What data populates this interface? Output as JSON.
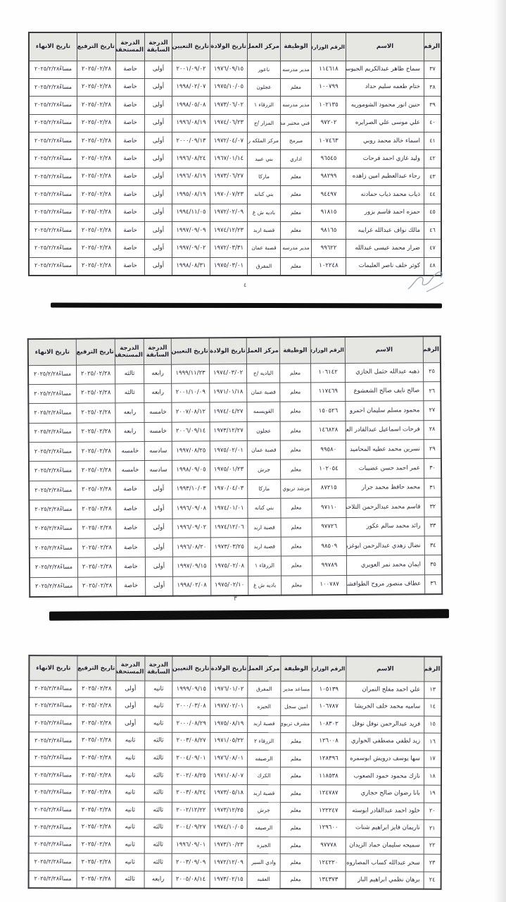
{
  "document": {
    "page_numbers": {
      "first": "٤",
      "second": "٣"
    }
  },
  "columns": [
    {
      "key": "num",
      "label": "الرقم"
    },
    {
      "key": "name",
      "label": "الاسم"
    },
    {
      "key": "ministry_no",
      "label": "الرقم الوزاري"
    },
    {
      "key": "job",
      "label": "الوظيفة"
    },
    {
      "key": "work_center",
      "label": "مركز العمل"
    },
    {
      "key": "birth_date",
      "label": "تاريخ الولادة"
    },
    {
      "key": "appointment_date",
      "label": "تاريخ التعيين"
    },
    {
      "key": "previous_grade",
      "label": "الدرجة السابقة"
    },
    {
      "key": "entitled_grade",
      "label": "الدرجة المستحقة"
    },
    {
      "key": "promotion_date",
      "label": "تاريخ الترفيع"
    },
    {
      "key": "end_date",
      "label": "تاريخ الانهاء"
    }
  ],
  "tables": [
    {
      "rows": [
        [
          "٣٧",
          "سماح ظاهر عبدالكريم الجيوسي",
          "١١٤٦١٨",
          "مدير مدرسه",
          "ناعور",
          "١٩٧٦/٠٩/١٥",
          "٢٠٠١/٠٩/٠٢",
          "أولى",
          "خاصة",
          "٢٠٢٥/٠٢/٢٨",
          "مساءً٢٠٢٥/٢/٢٨"
        ],
        [
          "٣٨",
          "ختام طعمه سليم حداد",
          "١٠٠٧٩٩",
          "معلم",
          "عجلون",
          "١٩٧٥/١٠/٠٥",
          "١٩٩٨/٠٢/٠٧",
          "أولى",
          "خاصة",
          "٢٠٢٥/٠٢/٢٨",
          "مساءً٢٠٢٥/٢/٢٨"
        ],
        [
          "٣٩",
          "حنين انور محمود الشوموريه",
          "١٠٢١٣٥",
          "مدير مدرسه",
          "الزرقاء ١",
          "١٩٧٣/٠٦/٠٢",
          "١٩٩٨/٠٥/٠٨",
          "أولى",
          "خاصة",
          "٢٠٢٥/٠٢/٢٨",
          "مساءً٢٠٢٥/٢/٢٨"
        ],
        [
          "٤٠",
          "علي موسى علي الصرايره",
          "٩٧٢٠٢",
          "فني مختبر مدرسة",
          "المزار /ج",
          "١٩٧٤/٠٦/٢٣",
          "١٩٩٦/٠٨/١٩",
          "أولى",
          "خاصة",
          "٢٠٢٥/٠٢/٢٨",
          "مساءً٢٠٢٥/٢/٢٨"
        ],
        [
          "٤١",
          "اسماء خالد محمد روبي",
          "١٠٧٤٦٣",
          "مبرمج",
          "مركز الملكه رانيا",
          "١٩٧٢/٠٤/٠٧",
          "٢٠٠٠/٠٩/١٣",
          "أولى",
          "خاصة",
          "٢٠٢٥/٠٢/٢٨",
          "مساءً٢٠٢٥/٢/٢٨"
        ],
        [
          "٤٢",
          "وليد غازي احمد فرحات",
          "٩٦٥٤٥",
          "اداري",
          "بني عبيد",
          "١٩٦٧/٠١/١٤",
          "١٩٩٦/٠٨/٢٤",
          "أولى",
          "خاصة",
          "٢٠٢٥/٠٢/٢٨",
          "مساءً٢٠٢٥/٢/٢٨"
        ],
        [
          "٤٣",
          "رجاء عبدالعظيم امين زاهده",
          "٩٨٢٩٩",
          "معلم",
          "ماركا",
          "١٩٧٣/٠٦/٢٧",
          "١٩٩٦/٠٨/١٩",
          "أولى",
          "خاصة",
          "٢٠٢٥/٠٢/٢٨",
          "مساءً٢٠٢٥/٢/٢٨"
        ],
        [
          "٤٤",
          "ذياب محمد ذياب حمادنه",
          "٩٤٤٩٧",
          "معلم",
          "بني كنانه",
          "١٩٧٠/٠٧/٢٣",
          "١٩٩٥/٠٨/١٩",
          "أولى",
          "خاصة",
          "٢٠٢٥/٠٢/٢٨",
          "مساءً٢٠٢٥/٢/٢٨"
        ],
        [
          "٤٥",
          "حمزه احمد قاسم بزور",
          "٩١٨١٥",
          "معلم",
          "باديه ش غ",
          "١٩٧٢/٠٢/٠٩",
          "١٩٩٤/١١/٠٥",
          "أولى",
          "خاصة",
          "٢٠٢٥/٠٢/٢٨",
          "مساءً٢٠٢٥/٢/٢٨"
        ],
        [
          "٤٦",
          "مالك نواف عبدالله غرايبه",
          "٩٨١٦٥",
          "معلم",
          "قصبة اربد",
          "١٩٧٤/١٢/٢٣",
          "١٩٩٧/٠٩/٠٩",
          "أولى",
          "خاصة",
          "٢٠٢٥/٠٢/٢٨",
          "مساءً٢٠٢٥/٢/٢٨"
        ],
        [
          "٤٧",
          "ضرار محمد عيسى عبدالله",
          "٩٩٦٢٢",
          "مدير مدرسه",
          "قصبة عمان",
          "١٩٧٢/٠٣/٣١",
          "١٩٩٧/٠٩/٠٢",
          "أولى",
          "خاصة",
          "٢٠٢٥/٠٢/٢٨",
          "مساءً٢٠٢٥/٢/٢٨"
        ],
        [
          "٤٨",
          "كوثر خلف ناصر العليمات",
          "١٠٢٢٤٨",
          "معلم",
          "المفرق",
          "١٩٧٥/٠٣/٠١",
          "١٩٩٨/٠٨/٣١",
          "أولى",
          "خاصة",
          "٢٠٢٥/٠٢/٢٨",
          "مساءً٢٠٢٥/٢/٢٨"
        ]
      ]
    },
    {
      "rows": [
        [
          "٢٥",
          "ذهبه عبدالله حثمل الجازي",
          "١٠٦١٤٢",
          "معلم",
          "الباديه /ج",
          "١٩٧٤/٠٣/٠٢",
          "١٩٩٩/١١/٢٣",
          "رابعه",
          "ثالثه",
          "٢٠٢٥/٠٢/٢٨",
          "مساءً٢٠٢٥/٢/٢٨"
        ],
        [
          "٢٦",
          "صالح نايف صالح الشعشوع",
          "١١٧٤٦٩",
          "معلم",
          "قصبة عمان",
          "١٩٧١/٠١/١٨",
          "٢٠٠١/١٠/٠٩",
          "رابعه",
          "ثالثه",
          "٢٠٢٥/٠٢/٢٨",
          "مساءً٢٠٢٥/٢/٢٨"
        ],
        [
          "٢٧",
          "محمود مسلم سليمان احمرو",
          "١٥٠٥٢٦",
          "معلم",
          "القويسمه",
          "١٩٧٤/٠٤/٢٧",
          "٢٠٠٧/٠٨/١٢",
          "خامسه",
          "رابعه",
          "٢٠٢٥/٠٢/٢٨",
          "مساءً٢٠٢٥/٢/٢٨"
        ],
        [
          "٢٨",
          "فرحات اسماعيل عبدالقادر العجلوني",
          "١٤٦٨٢٨",
          "معلم",
          "عجلون",
          "١٩٧٣/١٢/٢٧",
          "٢٠٠٦/٠٩/١٤",
          "خامسه",
          "رابعه",
          "٢٠٢٥/٠٢/٢٨",
          "مساءً٢٠٢٥/٢/٢٨"
        ],
        [
          "٢٩",
          "نسرين محمد عطيه المحاميد",
          "٩٩٥٨٠",
          "معلم",
          "قصبة عمان",
          "١٩٧٥/٠٢/٠١",
          "١٩٩٧/٠٨/٢٥",
          "سادسه",
          "خامسه",
          "٢٠٢٥/٠٢/٢٨",
          "مساءً٢٠٢٥/٢/٢٨"
        ],
        [
          "٣٠",
          "عمر احمد حسن عضيبات",
          "١٠٢٠٥٤",
          "معلم",
          "جرش",
          "١٩٧٥/٠١/٢٣",
          "١٩٩٨/٠٩/٠٥",
          "سادسه",
          "خامسه",
          "٢٠٢٥/٠٢/٢٨",
          "مساءً٢٠٢٥/٢/٢٨"
        ],
        [
          "٣١",
          "محمد حافظ محمد جرار",
          "٨٧٢١٥",
          "مرشد تربوي",
          "ماركا",
          "١٩٧٠/٠٤/٠٣",
          "١٩٩٣/١٠/٠٣",
          "أولى",
          "خاصة",
          "٢٠٢٥/٠٢/٢٨",
          "مساءً٢٠٢٥/٢/٢٨"
        ],
        [
          "٣٢",
          "قاسم محمد عبدالرحمن التلاحمه",
          "٩٧١١٠",
          "معلم",
          "بني كنانه",
          "١٩٧٤/٠١/٠١",
          "١٩٩٦/٠٩/٠٨",
          "أولى",
          "خاصة",
          "٢٠٢٥/٠٢/٢٨",
          "مساءً٢٠٢٥/٢/٢٨"
        ],
        [
          "٣٣",
          "رائد محمد سالم عكور",
          "٩٧٧٢٦",
          "معلم",
          "قصبة اربد",
          "١٩٧٤/١٢/٠٦",
          "١٩٩٦/٠٩/٠٢",
          "أولى",
          "خاصة",
          "٢٠٢٥/٠٢/٢٨",
          "مساءً٢٠٢٥/٢/٢٨"
        ],
        [
          "٣٤",
          "نضال زهدي عبدالرحمن ابوغزه",
          "٩٨٥٠٩",
          "معلم",
          "قصبة اربد",
          "١٩٧٣/٠٣/٢٥",
          "١٩٩٦/٠٨/٢٠",
          "أولى",
          "خاصة",
          "٢٠٢٥/٠٢/٢٨",
          "مساءً٢٠٢٥/٢/٢٨"
        ],
        [
          "٣٥",
          "ايمان محمد نمر العويري",
          "٩٩٧٨٩",
          "معلم",
          "الزرقاء ١",
          "١٩٧٥/٠٢/٠٨",
          "١٩٩٧/٠٩/١٥",
          "أولى",
          "خاصة",
          "٢٠٢٥/٠٢/٢٨",
          "مساءً٢٠٢٥/٢/٢٨"
        ],
        [
          "٣٦",
          "عطاف منصور مروح الطوافشه",
          "١٠٠٧٨٧",
          "معلم",
          "باديه ش غ",
          "١٩٧٥/٠٢/١٠",
          "١٩٩٨/٠٢/٠٨",
          "أولى",
          "خاصة",
          "٢٠٢٥/٠٢/٢٨",
          "مساءً٢٠٢٥/٢/٢٨"
        ]
      ]
    },
    {
      "rows": [
        [
          "١٣",
          "علي احمد مفلح النمران",
          "١٠٥١٣٩",
          "مساعد مدير مدرسه",
          "المفرق",
          "١٩٧٦/٠١/٠٢",
          "١٩٩٩/٠٩/١٥",
          "ثانيه",
          "أولى",
          "٢٠٢٥/٠٢/٢٨",
          "مساءً٢٠٢٥/٢/٢٨"
        ],
        [
          "١٤",
          "ساميه محمد خلف الخريشا",
          "١٠٦٧٨٧",
          "امين سجل",
          "الجيزه",
          "١٩٧٧/٠٢/٠١",
          "٢٠٠٠/٠٣/٠٨",
          "ثانيه",
          "أولى",
          "٢٠٢٥/٠٢/٢٨",
          "مساءً٢٠٢٥/٢/٢٨"
        ],
        [
          "١٥",
          "فريد عبدالرحمن نوفل نوفل",
          "١٠٨٣٠٢",
          "مشرف تربوي",
          "قصبة اربد",
          "١٩٧٥/٠٨/١٩",
          "٢٠٠٠/٠٨/٢٩",
          "ثانيه",
          "أولى",
          "٢٠٢٥/٠٢/٢٨",
          "مساءً٢٠٢٥/٢/٢٨"
        ],
        [
          "١٦",
          "زيد لطفي مصطفى الحواري",
          "١٢٦٠٠٨",
          "معلم",
          "الزرقاء ٢",
          "١٩٧١/٠٥/٢٢",
          "٢٠٠٣/٠٨/٢٧",
          "ثالثه",
          "ثانيه",
          "٢٠٢٥/٠٢/٢٨",
          "مساءً٢٠٢٥/٢/٢٨"
        ],
        [
          "١٧",
          "سها يوسف درويش ابوسمره",
          "١٢٨٣٩٦",
          "معلم",
          "الرصيفه",
          "١٩٧٦/٠٨/٠١",
          "٢٠٠٤/٠٩/٠١",
          "ثالثه",
          "ثانيه",
          "٢٠٢٥/٠٢/٢٨",
          "مساءً٢٠٢٥/٢/٢٨"
        ],
        [
          "١٨",
          "نازك محمود حمود الصعوب",
          "١١٨٥٣٨",
          "معلم",
          "الكرك",
          "١٩٧١/٠٨/٠٧",
          "٢٠٠٢/٠٨/٢٥",
          "ثالثه",
          "ثانيه",
          "٢٠٢٥/٠٢/٢٨",
          "مساءً٢٠٢٥/٢/٢٨"
        ],
        [
          "١٩",
          "بانا رضوان صالح حجازي",
          "١٢٤٧٨٧",
          "معلم",
          "قصبة اربد",
          "١٩٧٣/٠٥/١٨",
          "٢٠٠٣/٠٨/٢٤",
          "ثالثه",
          "ثانيه",
          "٢٠٢٥/٠٢/٢٨",
          "مساءً٢٠٢٥/٢/٢٨"
        ],
        [
          "٢٠",
          "خلود احمد عبدالقادر ابوسته",
          "١٢٢٢٤٧",
          "معلم",
          "جرش",
          "١٩٧٣/١٢/٢٥",
          "٢٠٠٢/١٢/٢٢",
          "ثالثه",
          "ثانيه",
          "٢٠٢٥/٠٢/٢٨",
          "مساءً٢٠٢٥/٢/٢٨"
        ],
        [
          "٢١",
          "ناريمان فايز ابراهيم شنات",
          "١٢٩٦٠٠",
          "معلم",
          "الرصيفه",
          "١٩٧٤/١٠/٠٥",
          "٢٠٠٤/٠٩/٢٧",
          "ثالثه",
          "ثانيه",
          "٢٠٢٥/٠٢/٢٨",
          "مساءً٢٠٢٥/٢/٢٨"
        ],
        [
          "٢٢",
          "سميحه سليمان حماد الزيدان",
          "٩٧٧٧٨",
          "معلم",
          "الجيزه",
          "١٩٧٣/١٠/٢٣",
          "١٩٩٦/٠٩/٠١",
          "ثالثه",
          "ثانيه",
          "٢٠٢٥/٠٢/٢٨",
          "مساءً٢٠٢٥/٢/٢٨"
        ],
        [
          "٢٣",
          "سحر عبدالله كساب المصاروه",
          "١٢٤٢٢٠",
          "معلم",
          "وادي السير",
          "١٩٧٢/١٢/٠٩",
          "٢٠٠٣/٠٩/٠٩",
          "ثالثه",
          "ثانيه",
          "٢٠٢٥/٠٢/٢٨",
          "مساءً٢٠٢٥/٢/٢٨"
        ],
        [
          "٢٤",
          "برهان نظمي ابراهيم الباز",
          "١٣٤٣٧٣",
          "معلم",
          "العقبه",
          "١٩٧٣/٠٢/١٥",
          "٢٠٠٥/٠٨/١٤",
          "رابعه",
          "ثالثه",
          "٢٠٢٥/٠٢/٢٨",
          "مساءً٢٠٢٥/٢/٢٨"
        ]
      ]
    }
  ]
}
